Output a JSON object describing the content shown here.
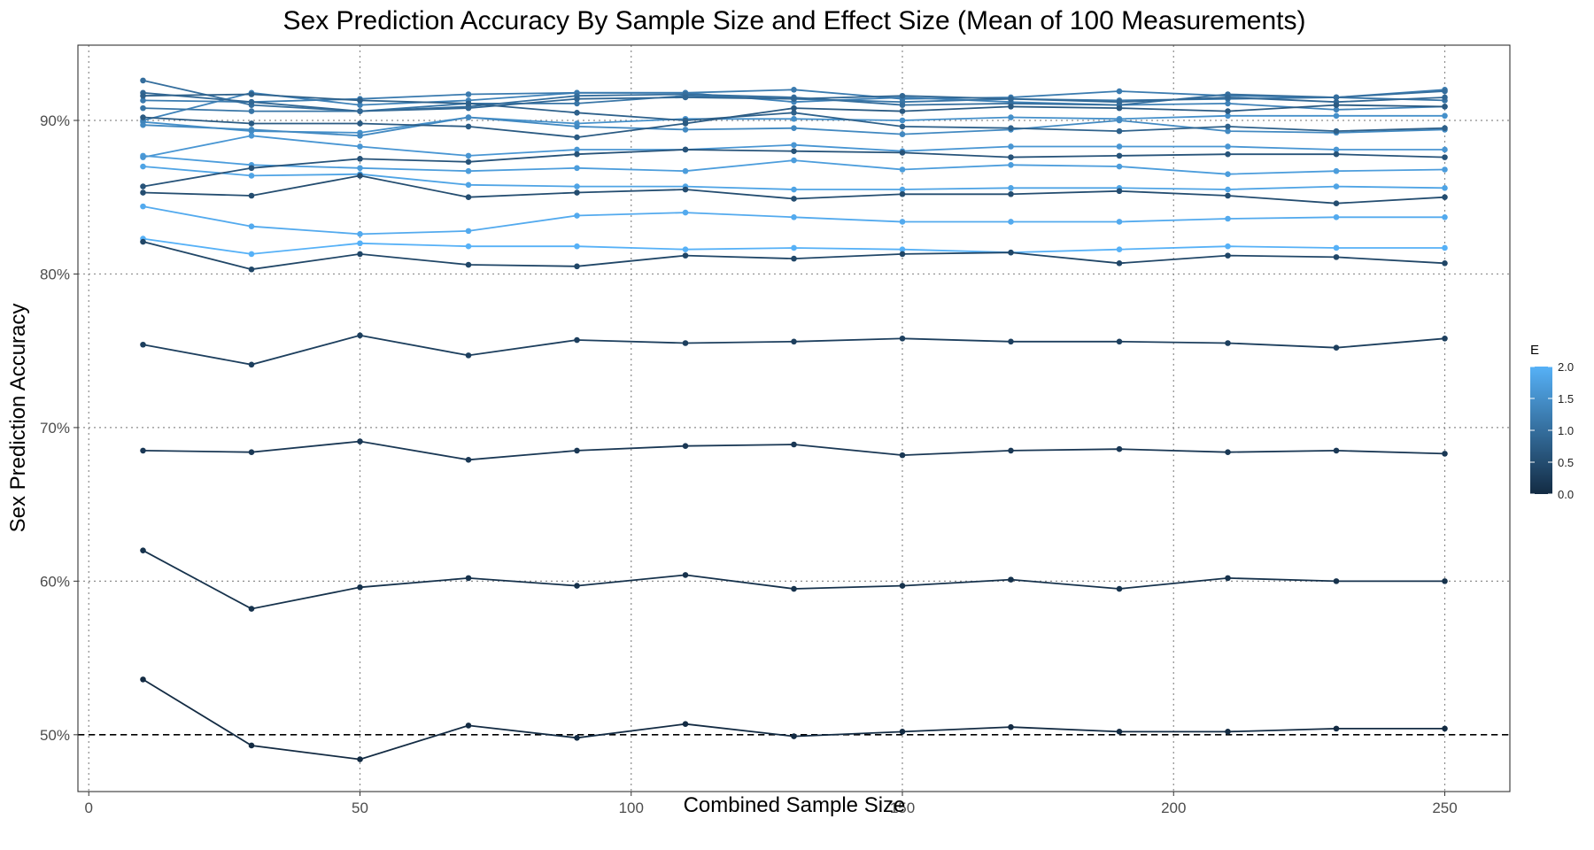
{
  "chart_data": {
    "type": "line",
    "title": "Sex Prediction Accuracy By Sample Size and Effect Size (Mean of 100 Measurements)",
    "xlabel": "Combined Sample Size",
    "ylabel": "Sex Prediction Accuracy",
    "xlim": [
      -2,
      262
    ],
    "ylim": [
      46.3,
      94.9
    ],
    "x_ticks": [
      0,
      50,
      100,
      150,
      200,
      250
    ],
    "x_tick_labels": [
      "0",
      "50",
      "100",
      "150",
      "200",
      "250"
    ],
    "y_ticks": [
      50,
      60,
      70,
      80,
      90
    ],
    "y_tick_labels": [
      "50%",
      "60%",
      "70%",
      "80%",
      "90%"
    ],
    "grid": "dotted at major ticks",
    "reference_line": {
      "y": 50,
      "style": "dashed"
    },
    "x": [
      10,
      30,
      50,
      70,
      90,
      110,
      130,
      150,
      170,
      190,
      210,
      230,
      250
    ],
    "legend": {
      "title": "E",
      "type": "colorbar",
      "placement": "right",
      "range": [
        0,
        2
      ],
      "ticks": [
        0.0,
        0.5,
        1.0,
        1.5,
        2.0
      ],
      "tick_labels": [
        "0.0",
        "0.5",
        "1.0",
        "1.5",
        "2.0"
      ],
      "low_color": "#132B43",
      "high_color": "#56B1F7"
    },
    "series": [
      {
        "e": 0.0,
        "values": [
          53.6,
          49.3,
          48.4,
          50.6,
          49.8,
          50.7,
          49.9,
          50.2,
          50.5,
          50.2,
          50.2,
          50.4,
          50.4
        ]
      },
      {
        "e": 0.1,
        "values": [
          62.0,
          58.2,
          59.6,
          60.2,
          59.7,
          60.4,
          59.5,
          59.7,
          60.1,
          59.5,
          60.2,
          60.0,
          60.0
        ]
      },
      {
        "e": 0.2,
        "values": [
          68.5,
          68.4,
          69.1,
          67.9,
          68.5,
          68.8,
          68.9,
          68.2,
          68.5,
          68.6,
          68.4,
          68.5,
          68.3
        ]
      },
      {
        "e": 0.3,
        "values": [
          75.4,
          74.1,
          76.0,
          74.7,
          75.7,
          75.5,
          75.6,
          75.8,
          75.6,
          75.6,
          75.5,
          75.2,
          75.8
        ]
      },
      {
        "e": 0.4,
        "values": [
          82.1,
          80.3,
          81.3,
          80.6,
          80.5,
          81.2,
          81.0,
          81.3,
          81.4,
          80.7,
          81.2,
          81.1,
          80.7
        ]
      },
      {
        "e": 0.5,
        "values": [
          85.3,
          85.1,
          86.4,
          85.0,
          85.3,
          85.5,
          84.9,
          85.2,
          85.2,
          85.4,
          85.1,
          84.6,
          85.0
        ]
      },
      {
        "e": 0.6,
        "values": [
          85.7,
          86.9,
          87.5,
          87.3,
          87.8,
          88.1,
          88.0,
          87.9,
          87.6,
          87.7,
          87.8,
          87.8,
          87.6
        ]
      },
      {
        "e": 0.7,
        "values": [
          90.2,
          89.8,
          89.8,
          89.6,
          88.9,
          89.8,
          90.8,
          90.6,
          90.9,
          90.8,
          90.6,
          91.0,
          90.9
        ]
      },
      {
        "e": 0.8,
        "values": [
          91.6,
          91.7,
          91.3,
          91.1,
          90.5,
          90.0,
          90.5,
          89.6,
          89.5,
          89.3,
          89.6,
          89.3,
          89.5
        ]
      },
      {
        "e": 0.9,
        "values": [
          91.8,
          91.2,
          90.6,
          90.8,
          91.4,
          91.5,
          91.4,
          91.6,
          91.4,
          91.2,
          91.5,
          91.2,
          91.5
        ]
      },
      {
        "e": 1.0,
        "values": [
          92.6,
          91.0,
          90.6,
          90.9,
          91.6,
          91.7,
          91.5,
          91.0,
          91.1,
          91.0,
          91.7,
          91.5,
          91.9
        ]
      },
      {
        "e": 1.1,
        "values": [
          90.8,
          90.6,
          90.6,
          91.1,
          91.1,
          91.6,
          91.4,
          91.2,
          91.4,
          91.3,
          91.4,
          91.5,
          91.3
        ]
      },
      {
        "e": 1.2,
        "values": [
          91.3,
          91.2,
          91.4,
          91.7,
          91.8,
          91.8,
          92.0,
          91.4,
          91.5,
          91.9,
          91.6,
          91.5,
          92.0
        ]
      },
      {
        "e": 1.3,
        "values": [
          90.0,
          91.8,
          91.0,
          91.3,
          91.8,
          91.8,
          91.2,
          91.5,
          91.2,
          91.0,
          91.1,
          90.7,
          90.9
        ]
      },
      {
        "e": 1.4,
        "values": [
          89.7,
          89.4,
          89.0,
          90.2,
          89.6,
          89.4,
          89.5,
          89.1,
          89.4,
          90.0,
          89.3,
          89.2,
          89.4
        ]
      },
      {
        "e": 1.5,
        "values": [
          89.9,
          89.3,
          89.2,
          90.2,
          89.8,
          90.1,
          90.1,
          90.0,
          90.2,
          90.1,
          90.3,
          90.3,
          90.3
        ]
      },
      {
        "e": 1.6,
        "values": [
          87.6,
          89.0,
          88.3,
          87.7,
          88.1,
          88.1,
          88.4,
          88.0,
          88.3,
          88.3,
          88.3,
          88.1,
          88.1
        ]
      },
      {
        "e": 1.7,
        "values": [
          87.7,
          87.1,
          86.9,
          86.7,
          86.9,
          86.7,
          87.4,
          86.8,
          87.1,
          87.0,
          86.5,
          86.7,
          86.8
        ]
      },
      {
        "e": 1.8,
        "values": [
          87.0,
          86.4,
          86.5,
          85.8,
          85.7,
          85.7,
          85.5,
          85.5,
          85.6,
          85.6,
          85.5,
          85.7,
          85.6
        ]
      },
      {
        "e": 1.9,
        "values": [
          84.4,
          83.1,
          82.6,
          82.8,
          83.8,
          84.0,
          83.7,
          83.4,
          83.4,
          83.4,
          83.6,
          83.7,
          83.7
        ]
      },
      {
        "e": 2.0,
        "values": [
          82.3,
          81.3,
          82.0,
          81.8,
          81.8,
          81.6,
          81.7,
          81.6,
          81.4,
          81.6,
          81.8,
          81.7,
          81.7
        ]
      }
    ]
  }
}
